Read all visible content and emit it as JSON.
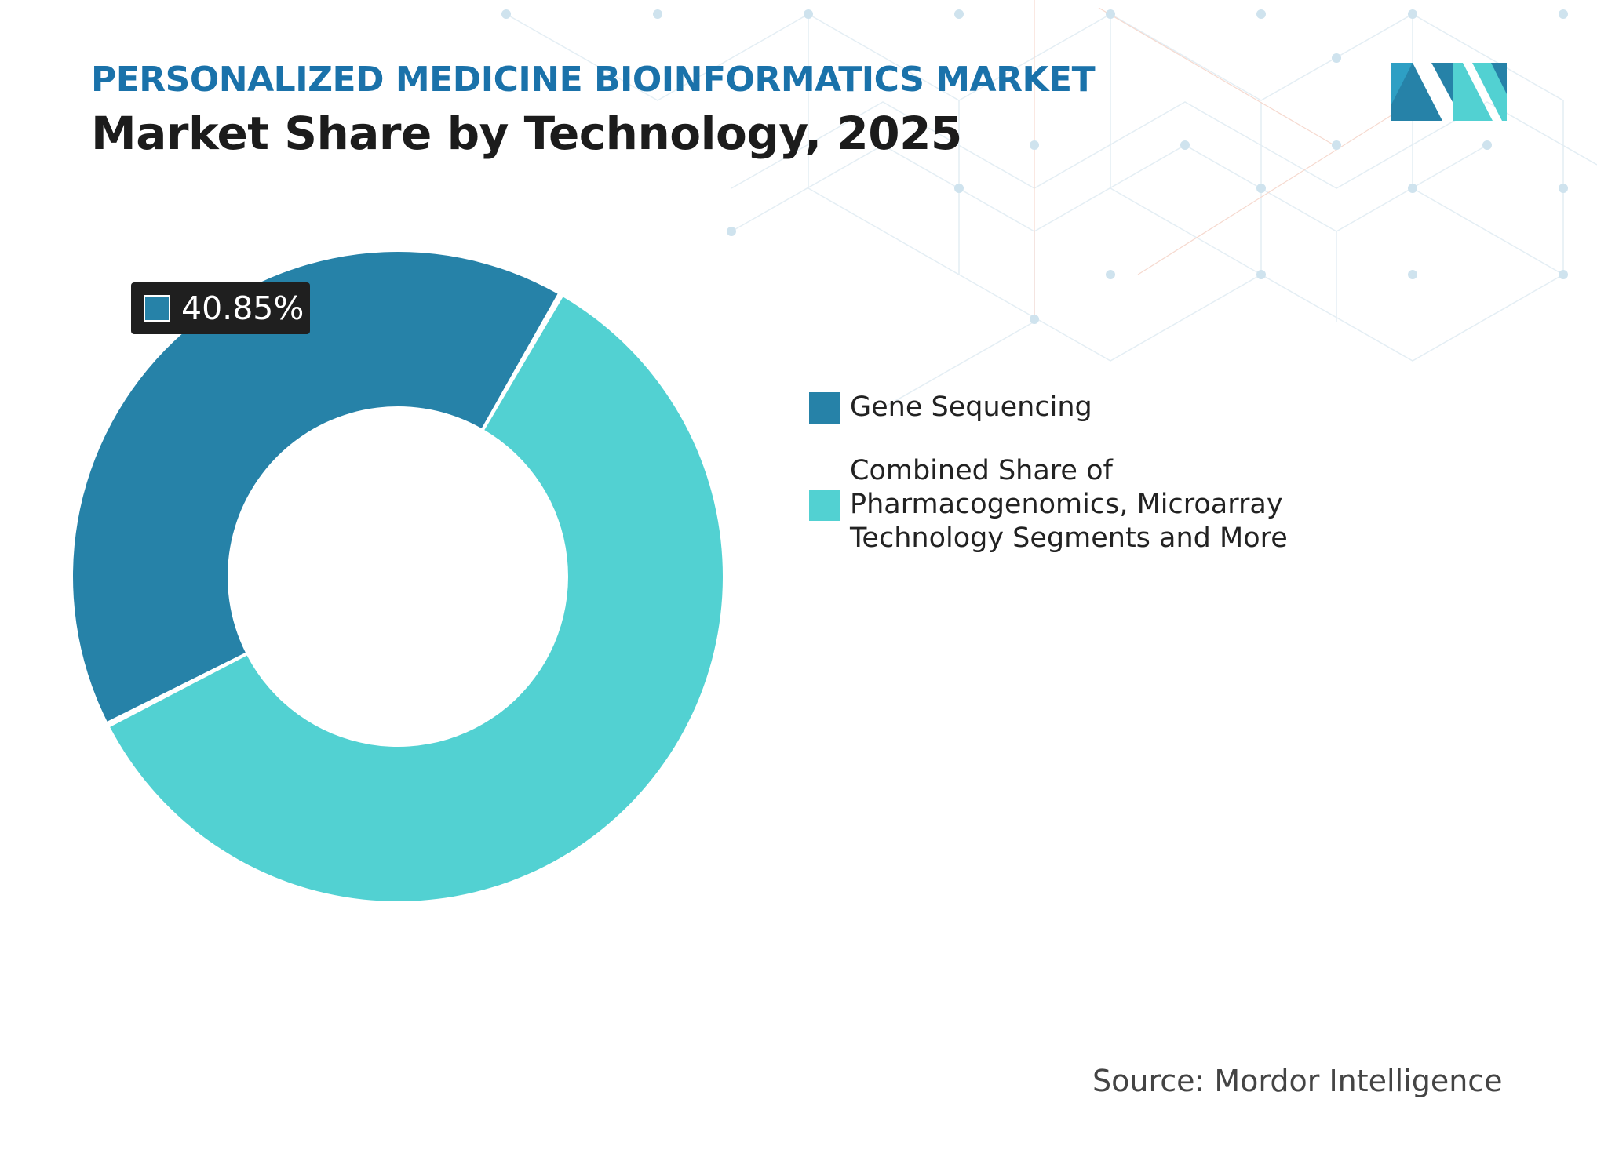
{
  "header": {
    "kicker": "PERSONALIZED MEDICINE BIOINFORMATICS MARKET",
    "title": "Market Share by Technology, 2025"
  },
  "colors": {
    "kicker": "#1a72aa",
    "gene_sequencing": "#2682a8",
    "combined_share": "#52d1d2",
    "label_box": "#1f1f1f",
    "pattern": "#cfe3ee"
  },
  "chart_data": {
    "type": "pie",
    "variant": "donut",
    "title": "Market Share by Technology, 2025",
    "unit": "%",
    "series": [
      {
        "name": "Gene Sequencing",
        "value": 40.85,
        "color": "#2682a8",
        "data_label": "40.85%"
      },
      {
        "name": "Combined Share of Pharmacogenomics, Microarray Technology Segments and More",
        "value": 59.15,
        "color": "#52d1d2"
      }
    ],
    "legend_placement": "right",
    "grid": false
  },
  "source": "Source: Mordor Intelligence",
  "logo": {
    "icon": "mordor-intelligence-logo"
  }
}
